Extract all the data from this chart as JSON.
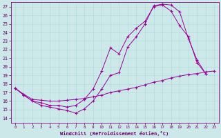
{
  "xlabel": "Windchill (Refroidissement éolien,°C)",
  "bg_color": "#cce8e8",
  "line_color": "#990099",
  "grid_color": "#aad8d8",
  "xlim": [
    -0.5,
    23.5
  ],
  "ylim": [
    13.5,
    27.5
  ],
  "xticks": [
    0,
    1,
    2,
    3,
    4,
    5,
    6,
    7,
    8,
    9,
    10,
    11,
    12,
    13,
    14,
    15,
    16,
    17,
    18,
    19,
    20,
    21,
    22,
    23
  ],
  "yticks": [
    14,
    15,
    16,
    17,
    18,
    19,
    20,
    21,
    22,
    23,
    24,
    25,
    26,
    27
  ],
  "line1_x": [
    0,
    1,
    2,
    3,
    4,
    5,
    6,
    7,
    8,
    9,
    10,
    11,
    12,
    13,
    14,
    15,
    16,
    17,
    18,
    19,
    20,
    21,
    22
  ],
  "line1_y": [
    17.5,
    16.7,
    16.0,
    15.5,
    15.3,
    15.1,
    14.9,
    14.6,
    15.1,
    16.0,
    17.4,
    19.0,
    19.3,
    22.3,
    23.5,
    25.0,
    27.1,
    27.3,
    27.2,
    26.4,
    23.3,
    20.8,
    19.2
  ],
  "line2_x": [
    0,
    1,
    2,
    3,
    4,
    5,
    6,
    7,
    8,
    9,
    10,
    11,
    12,
    13,
    14,
    15,
    16,
    17,
    18,
    19,
    20,
    21,
    22
  ],
  "line2_y": [
    17.5,
    16.7,
    16.0,
    15.8,
    15.5,
    15.5,
    15.3,
    15.5,
    16.2,
    17.4,
    19.5,
    22.2,
    21.5,
    23.5,
    24.5,
    25.3,
    27.0,
    27.2,
    26.5,
    24.8,
    23.5,
    20.5,
    19.2
  ],
  "line3_x": [
    0,
    1,
    2,
    3,
    4,
    5,
    6,
    7,
    8,
    9,
    10,
    11,
    12,
    13,
    14,
    15,
    16,
    17,
    18,
    19,
    20,
    21,
    22,
    23
  ],
  "line3_y": [
    17.5,
    16.8,
    16.2,
    16.1,
    16.0,
    16.0,
    16.1,
    16.2,
    16.3,
    16.5,
    16.7,
    17.0,
    17.2,
    17.4,
    17.6,
    17.9,
    18.2,
    18.4,
    18.7,
    18.9,
    19.1,
    19.2,
    19.4,
    19.5
  ]
}
